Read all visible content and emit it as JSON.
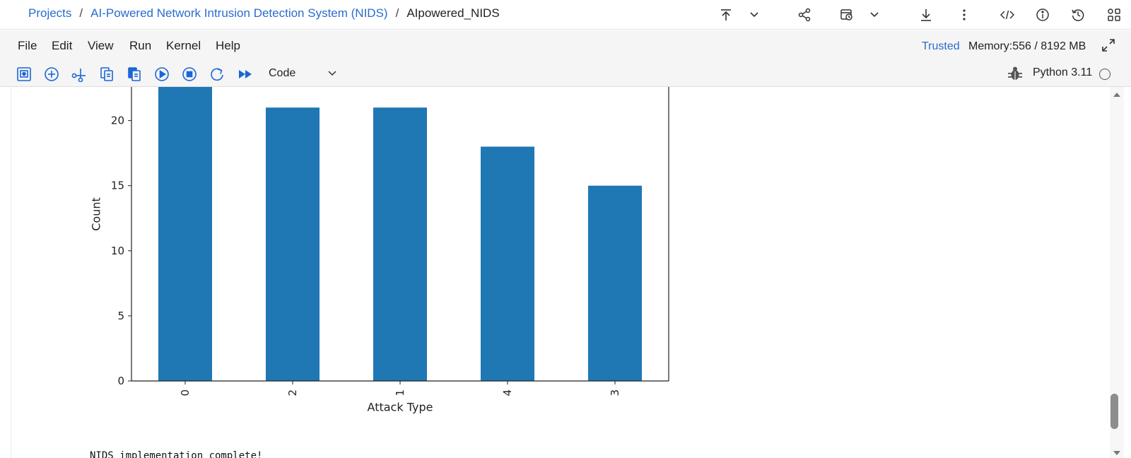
{
  "breadcrumb": {
    "projects": "Projects",
    "project": "AI-Powered Network Intrusion Detection System (NIDS)",
    "notebook": "AIpowered_NIDS",
    "separator": "/"
  },
  "top_icons": [
    "upload-icon",
    "chevron-down-icon",
    "share-icon",
    "schedule-icon",
    "chevron-down-icon",
    "download-icon",
    "more-vertical-icon",
    "code-icon",
    "info-icon",
    "history-icon",
    "apps-icon"
  ],
  "menu": {
    "items": [
      "File",
      "Edit",
      "View",
      "Run",
      "Kernel",
      "Help"
    ],
    "trusted": "Trusted",
    "memory": "Memory:556 / 8192 MB"
  },
  "toolbar": {
    "cell_type": "Code",
    "kernel": "Python 3.11"
  },
  "colors": {
    "link": "#2a6ccf",
    "toolbar_icon": "#1a66d9",
    "bar": "#1f77b4"
  },
  "chart_data": {
    "type": "bar",
    "categories": [
      "0",
      "2",
      "1",
      "4",
      "3"
    ],
    "values": [
      25,
      21,
      21,
      18,
      15
    ],
    "xlabel": "Attack Type",
    "ylabel": "Count",
    "yticks": [
      0,
      5,
      10,
      15,
      20
    ],
    "ylim": [
      0,
      23.4
    ],
    "grid": false,
    "legend": "none"
  },
  "output": {
    "text": "NIDS implementation complete!"
  }
}
